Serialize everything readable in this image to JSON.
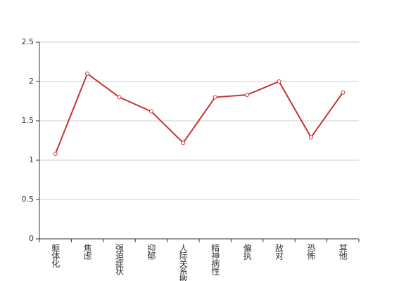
{
  "chart_data": {
    "type": "line",
    "categories": [
      "躯体化",
      "焦虑",
      "强迫症状",
      "抑郁",
      "人际关系敏感",
      "精神病性",
      "偏执",
      "敌对",
      "恐怖",
      "其他"
    ],
    "series": [
      {
        "values": [
          1.08,
          2.1,
          1.8,
          1.62,
          1.22,
          1.8,
          1.83,
          2.0,
          1.29,
          1.86
        ],
        "color": "#c23531"
      }
    ],
    "ylim": [
      0,
      2.5
    ],
    "yticks": [
      0,
      0.5,
      1,
      1.5,
      2,
      2.5
    ],
    "grid": true
  }
}
